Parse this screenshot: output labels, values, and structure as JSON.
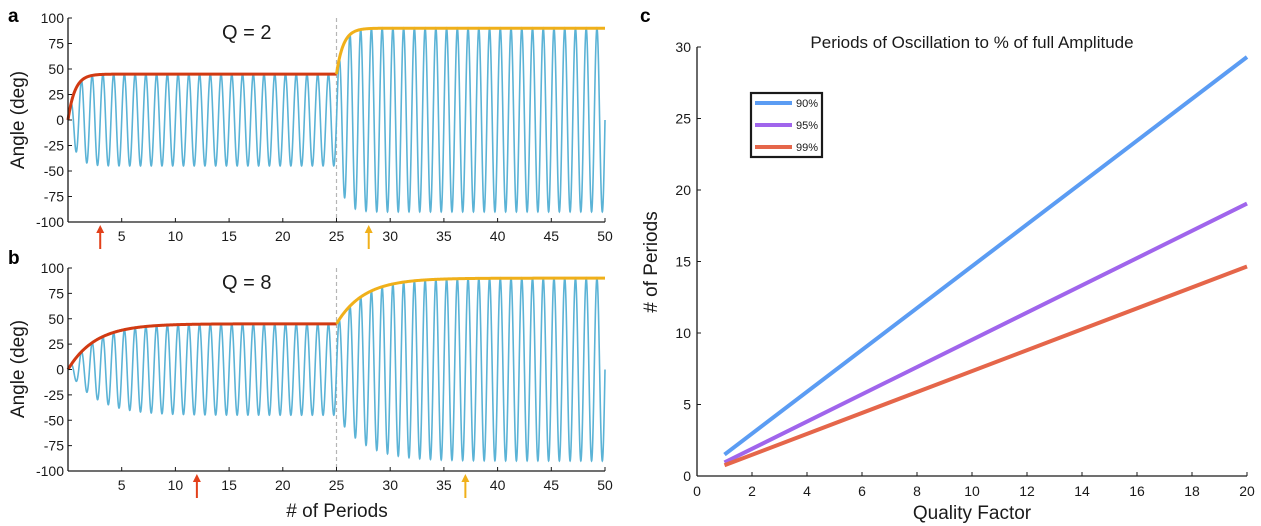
{
  "colors": {
    "oscillation": "#5bb3d6",
    "envelope_first": "#d13a12",
    "envelope_second": "#f0b01a",
    "divider": "#b5b5b5",
    "arrow_first": "#e2401a",
    "arrow_second": "#f0b01a",
    "s90": "#5b9cf3",
    "s95": "#a065ec",
    "s99": "#e5664a"
  },
  "chart_data": [
    {
      "panel": "a",
      "type": "line",
      "annotation": "Q = 2",
      "quality_factor": 2,
      "xlabel": "",
      "ylabel": "Angle (deg)",
      "xlim": [
        0,
        50
      ],
      "ylim": [
        -100,
        100
      ],
      "xticks": [
        5,
        10,
        15,
        20,
        25,
        30,
        35,
        40,
        45,
        50
      ],
      "yticks": [
        100,
        75,
        50,
        25,
        0,
        -25,
        -50,
        -75,
        -100
      ],
      "switch_period": 25,
      "series": [
        {
          "name": "oscillation",
          "description": "driven oscillation, amplitude ramps to 45 then 90 deg, period 1"
        },
        {
          "name": "envelope_first",
          "target_amplitude": 45,
          "x_range": [
            0,
            25
          ]
        },
        {
          "name": "envelope_second",
          "start_amplitude": 45,
          "target_amplitude": 90,
          "x_range": [
            25,
            50
          ]
        }
      ],
      "arrows": [
        {
          "x": 3,
          "color": "arrow_first"
        },
        {
          "x": 28,
          "color": "arrow_second"
        }
      ]
    },
    {
      "panel": "b",
      "type": "line",
      "annotation": "Q = 8",
      "quality_factor": 8,
      "xlabel": "# of Periods",
      "ylabel": "Angle (deg)",
      "xlim": [
        0,
        50
      ],
      "ylim": [
        -100,
        100
      ],
      "xticks": [
        5,
        10,
        15,
        20,
        25,
        30,
        35,
        40,
        45,
        50
      ],
      "yticks": [
        100,
        75,
        50,
        25,
        0,
        -25,
        -50,
        -75,
        -100
      ],
      "switch_period": 25,
      "series": [
        {
          "name": "oscillation",
          "description": "driven oscillation, amplitude ramps to 45 then 90 deg, period 1"
        },
        {
          "name": "envelope_first",
          "target_amplitude": 45,
          "x_range": [
            0,
            25
          ]
        },
        {
          "name": "envelope_second",
          "start_amplitude": 45,
          "target_amplitude": 90,
          "x_range": [
            25,
            50
          ]
        }
      ],
      "arrows": [
        {
          "x": 12,
          "color": "arrow_first"
        },
        {
          "x": 37,
          "color": "arrow_second"
        }
      ]
    },
    {
      "panel": "c",
      "type": "line",
      "title": "Periods of Oscillation to % of full Amplitude",
      "xlabel": "Quality Factor",
      "ylabel": "# of Periods",
      "xlim": [
        0,
        20
      ],
      "ylim": [
        0,
        30
      ],
      "xticks": [
        0,
        2,
        4,
        6,
        8,
        10,
        12,
        14,
        16,
        18,
        20
      ],
      "yticks": [
        0,
        5,
        10,
        15,
        20,
        25,
        30
      ],
      "legend_position": "top-left",
      "series": [
        {
          "name": "90%",
          "color": "s90",
          "x": [
            1,
            20
          ],
          "y": [
            1.5,
            29.3
          ]
        },
        {
          "name": "95%",
          "color": "s95",
          "x": [
            1,
            20
          ],
          "y": [
            0.95,
            19.05
          ]
        },
        {
          "name": "99%",
          "color": "s99",
          "x": [
            1,
            20
          ],
          "y": [
            0.75,
            14.65
          ]
        }
      ]
    }
  ]
}
